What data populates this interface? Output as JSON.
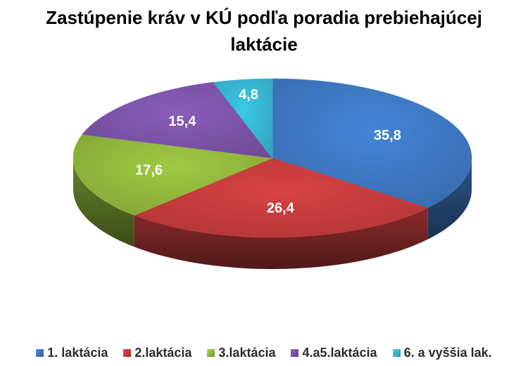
{
  "chart_data": {
    "type": "pie",
    "title_lines": [
      "Zastúpenie kráv v KÚ podľa poradia prebiehajúcej",
      "laktácie"
    ],
    "categories": [
      "1. laktácia",
      "2.laktácia",
      "3.laktácia",
      "4.a5.laktácia",
      "6. a vyššia lak."
    ],
    "values": [
      35.8,
      26.4,
      17.6,
      15.4,
      4.8
    ],
    "value_labels": [
      "35,8",
      "26,4",
      "17,6",
      "15,4",
      "4,8"
    ],
    "colors": [
      "#3d76bf",
      "#c13b3b",
      "#8fb43c",
      "#7a52a5",
      "#36b3cf"
    ],
    "legend_position": "bottom",
    "style": "3d-pie"
  }
}
